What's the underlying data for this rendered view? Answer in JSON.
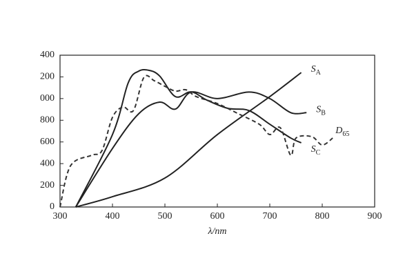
{
  "chart_data": {
    "type": "line",
    "x_label": "λ/nm",
    "xlim": [
      300,
      900
    ],
    "xticks": [
      300,
      400,
      500,
      600,
      700,
      800,
      900
    ],
    "ylim": [
      0,
      1400
    ],
    "yticks": [
      0,
      200,
      {
        "value": 400,
        "label": "400"
      },
      {
        "value": 600,
        "label": "600"
      },
      {
        "value": 800,
        "label": "800"
      },
      {
        "value": 1000,
        "label": "000"
      },
      {
        "value": 1200,
        "label": "200"
      },
      {
        "value": 1400,
        "label": "400"
      }
    ],
    "series": [
      {
        "name": "S",
        "subscript": "A",
        "color": "#222",
        "dash": false,
        "x": [
          330,
          400,
          500,
          600,
          700,
          760
        ],
        "values": [
          0,
          95,
          267,
          668,
          1018,
          1240
        ]
      },
      {
        "name": "S",
        "subscript": "B",
        "color": "#222",
        "dash": false,
        "x": [
          330,
          400,
          450,
          490,
          520,
          550,
          600,
          660,
          700,
          740,
          770
        ],
        "values": [
          0,
          540,
          860,
          967,
          903,
          1060,
          1000,
          1060,
          1000,
          870,
          870
        ]
      },
      {
        "name": "S",
        "subscript": "C",
        "color": "#222",
        "dash": false,
        "x": [
          330,
          400,
          430,
          450,
          470,
          490,
          520,
          550,
          580,
          620,
          660,
          700,
          740,
          760
        ],
        "values": [
          0,
          668,
          1145,
          1253,
          1260,
          1208,
          1018,
          1062,
          986,
          910,
          890,
          763,
          636,
          592
        ]
      },
      {
        "name": "D",
        "subscript": "65",
        "color": "#333",
        "dash": true,
        "x": [
          300,
          320,
          360,
          380,
          400,
          420,
          440,
          460,
          480,
          500,
          520,
          540,
          560,
          600,
          640,
          680,
          700,
          720,
          740,
          750,
          780,
          800,
          820
        ],
        "values": [
          0,
          380,
          477,
          520,
          827,
          922,
          890,
          1196,
          1164,
          1113,
          1069,
          1081,
          1018,
          954,
          860,
          763,
          668,
          731,
          477,
          636,
          649,
          572,
          636
        ]
      }
    ]
  }
}
